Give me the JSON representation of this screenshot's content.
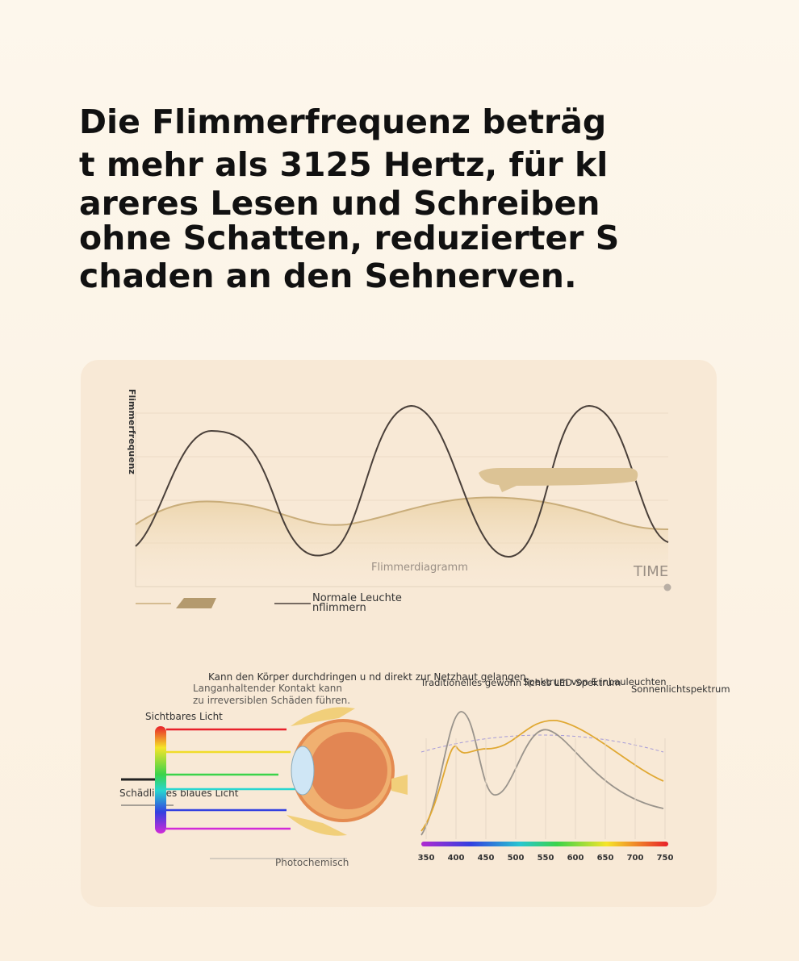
{
  "header": {
    "title_lines": [
      "Die Flimmerfrequenz beträg",
      "t mehr als 3125 Hertz, für kl",
      "areres Lesen und Schreiben",
      "ohne Schatten, reduzierter S",
      "chaden an den Sehnerven."
    ]
  },
  "flicker_chart": {
    "y_label": "Flimmerfrequenz",
    "caption": "Flimmerdiagramm",
    "x_label": "TIME",
    "legend_lines": [
      "Normale Leuchte",
      "nflimmern"
    ]
  },
  "eye_diagram": {
    "note_1": "Kann den Körper durchdringen u nd direkt zur Netzhaut gelangen.",
    "note_2_lines": [
      "Langanhaltender Kontakt kann",
      "zu irreversiblen Schäden führen."
    ],
    "visible_label": "Sichtbares Licht",
    "blue_label": "Schädliches blaues Licht",
    "bottom_label": "Photochemisch"
  },
  "spectrum": {
    "labels": [
      "Traditionelles gewöhn liches LED-Spektrum",
      "Spektrum von E inbauleuchten",
      "Sonnenlichtspektrum"
    ],
    "xlim": [
      350,
      750
    ],
    "xticks": [
      350,
      400,
      450,
      500,
      550,
      600,
      650,
      700,
      750
    ]
  }
}
